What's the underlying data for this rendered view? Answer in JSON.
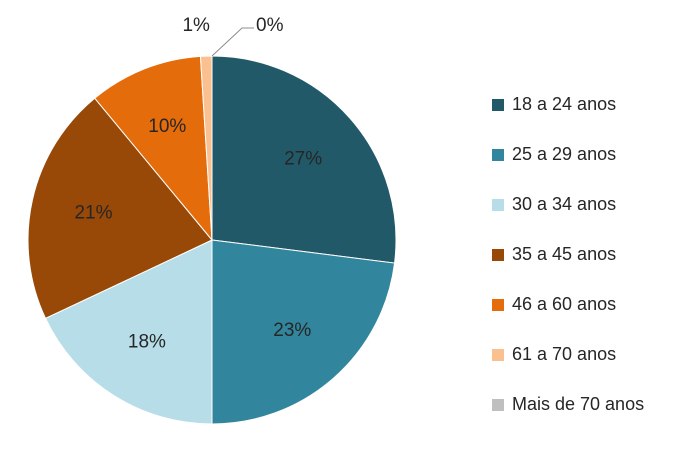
{
  "chart_data": {
    "type": "pie",
    "categories": [
      "18 a 24 anos",
      "25 a 29 anos",
      "30 a 34 anos",
      "35 a 45 anos",
      "46 a 60 anos",
      "61 a 70 anos",
      "Mais de 70 anos"
    ],
    "values": [
      27,
      23,
      18,
      21,
      10,
      1,
      0
    ],
    "value_labels": [
      "27%",
      "23%",
      "18%",
      "21%",
      "10%",
      "1%",
      "0%"
    ],
    "colors": [
      "#215968",
      "#31859c",
      "#b7dee8",
      "#984807",
      "#e46c0a",
      "#fac090",
      "#bfbfbf"
    ],
    "legend": "right"
  }
}
